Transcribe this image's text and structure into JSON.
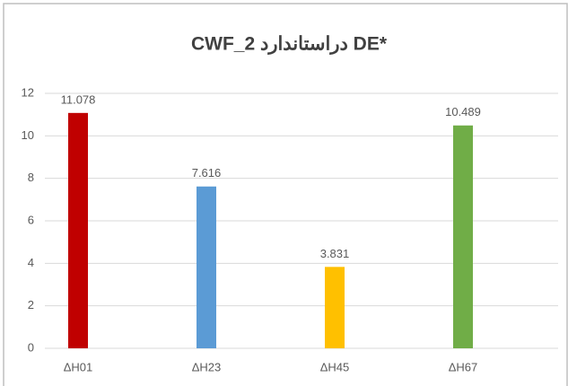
{
  "chart_data": {
    "type": "bar",
    "title": "CWF_2 دراستاندارد DE*",
    "categories": [
      "ΔH01",
      "ΔH23",
      "ΔH45",
      "ΔH67"
    ],
    "values": [
      11.078,
      7.616,
      3.831,
      10.489
    ],
    "colors": [
      "#c00000",
      "#5b9bd5",
      "#ffc000",
      "#70ad47"
    ],
    "ylim": [
      0,
      12
    ],
    "yticks": [
      0,
      2,
      4,
      6,
      8,
      10,
      12
    ],
    "grid": true
  }
}
